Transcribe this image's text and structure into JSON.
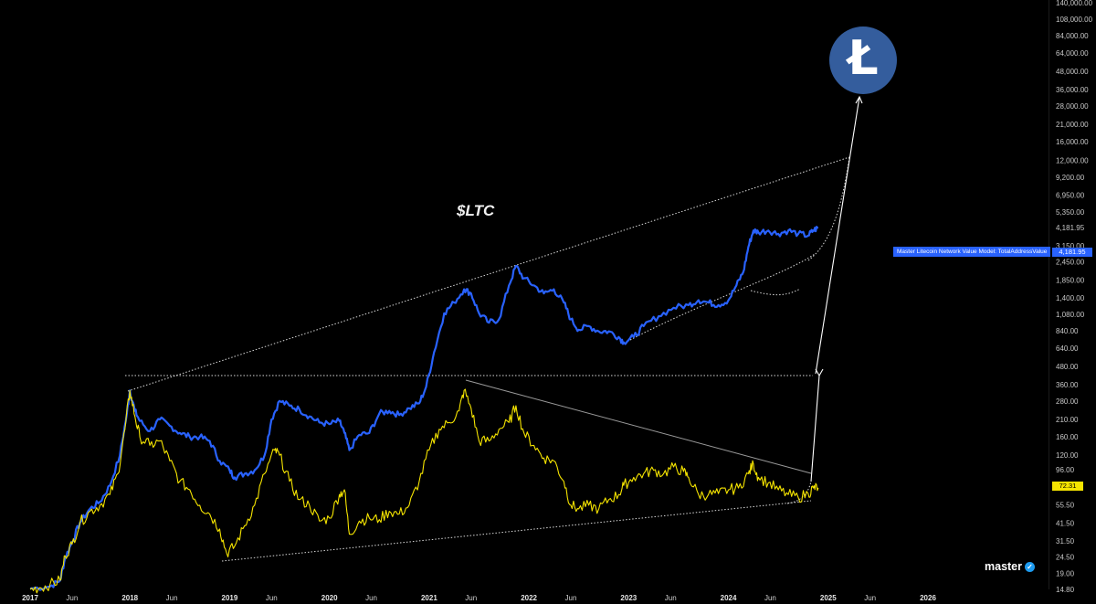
{
  "ticker_label": "$LTC",
  "logo_glyph": "Ł",
  "indicator_label": "Master Litecoin Network Value Model: TotalAddressValue",
  "price_tag_blue": "4,181.95",
  "price_tag_yellow": "72.31",
  "brand_name": "master",
  "colors": {
    "background": "#000000",
    "network_value": "#2962ff",
    "price": "#f5e400",
    "logo_bg": "#345d9d"
  },
  "chart_data": {
    "type": "line",
    "y_scale": "log",
    "ylim": [
      14.8,
      140000
    ],
    "y_ticks": [
      "140,000.00",
      "108,000.00",
      "84,000.00",
      "64,000.00",
      "48,000.00",
      "36,000.00",
      "28,000.00",
      "21,000.00",
      "16,000.00",
      "12,000.00",
      "9,200.00",
      "6,950.00",
      "5,350.00",
      "4,181.95",
      "3,150.00",
      "2,450.00",
      "1,850.00",
      "1,400.00",
      "1,080.00",
      "840.00",
      "640.00",
      "480.00",
      "360.00",
      "280.00",
      "210.00",
      "160.00",
      "120.00",
      "96.00",
      "72.31",
      "55.50",
      "41.50",
      "31.50",
      "24.50",
      "19.00",
      "14.80"
    ],
    "x_ticks": [
      {
        "label": "2017",
        "t": 2017.0,
        "year": true
      },
      {
        "label": "Jun",
        "t": 2017.42,
        "year": false
      },
      {
        "label": "2018",
        "t": 2018.0,
        "year": true
      },
      {
        "label": "Jun",
        "t": 2018.42,
        "year": false
      },
      {
        "label": "2019",
        "t": 2019.0,
        "year": true
      },
      {
        "label": "Jun",
        "t": 2019.42,
        "year": false
      },
      {
        "label": "2020",
        "t": 2020.0,
        "year": true
      },
      {
        "label": "Jun",
        "t": 2020.42,
        "year": false
      },
      {
        "label": "2021",
        "t": 2021.0,
        "year": true
      },
      {
        "label": "Jun",
        "t": 2021.42,
        "year": false
      },
      {
        "label": "2022",
        "t": 2022.0,
        "year": true
      },
      {
        "label": "Jun",
        "t": 2022.42,
        "year": false
      },
      {
        "label": "2023",
        "t": 2023.0,
        "year": true
      },
      {
        "label": "Jun",
        "t": 2023.42,
        "year": false
      },
      {
        "label": "2024",
        "t": 2024.0,
        "year": true
      },
      {
        "label": "Jun",
        "t": 2024.42,
        "year": false
      },
      {
        "label": "2025",
        "t": 2025.0,
        "year": true
      },
      {
        "label": "Jun",
        "t": 2025.42,
        "year": false
      },
      {
        "label": "2026",
        "t": 2026.0,
        "year": true
      }
    ],
    "series": [
      {
        "values": [
          [
            2017.0,
            15
          ],
          [
            2017.2,
            15.5
          ],
          [
            2017.3,
            17
          ],
          [
            2017.35,
            24
          ],
          [
            2017.42,
            31
          ],
          [
            2017.5,
            42
          ],
          [
            2017.6,
            52
          ],
          [
            2017.7,
            58
          ],
          [
            2017.8,
            75
          ],
          [
            2017.9,
            120
          ],
          [
            2017.97,
            230
          ],
          [
            2018.0,
            330
          ],
          [
            2018.05,
            240
          ],
          [
            2018.1,
            205
          ],
          [
            2018.2,
            175
          ],
          [
            2018.3,
            210
          ],
          [
            2018.4,
            190
          ],
          [
            2018.5,
            170
          ],
          [
            2018.6,
            160
          ],
          [
            2018.7,
            160
          ],
          [
            2018.8,
            150
          ],
          [
            2018.9,
            110
          ],
          [
            2019.0,
            95
          ],
          [
            2019.05,
            85
          ],
          [
            2019.15,
            90
          ],
          [
            2019.25,
            95
          ],
          [
            2019.35,
            120
          ],
          [
            2019.42,
            210
          ],
          [
            2019.5,
            280
          ],
          [
            2019.6,
            260
          ],
          [
            2019.7,
            245
          ],
          [
            2019.8,
            220
          ],
          [
            2019.9,
            200
          ],
          [
            2020.0,
            195
          ],
          [
            2020.1,
            205
          ],
          [
            2020.15,
            170
          ],
          [
            2020.2,
            130
          ],
          [
            2020.3,
            165
          ],
          [
            2020.4,
            170
          ],
          [
            2020.5,
            230
          ],
          [
            2020.6,
            240
          ],
          [
            2020.7,
            225
          ],
          [
            2020.8,
            250
          ],
          [
            2020.9,
            270
          ],
          [
            2020.97,
            350
          ],
          [
            2021.05,
            600
          ],
          [
            2021.15,
            1100
          ],
          [
            2021.25,
            1300
          ],
          [
            2021.35,
            1600
          ],
          [
            2021.42,
            1500
          ],
          [
            2021.5,
            1100
          ],
          [
            2021.6,
            950
          ],
          [
            2021.7,
            1000
          ],
          [
            2021.8,
            1700
          ],
          [
            2021.87,
            2300
          ],
          [
            2021.95,
            1900
          ],
          [
            2022.05,
            1700
          ],
          [
            2022.15,
            1500
          ],
          [
            2022.25,
            1600
          ],
          [
            2022.35,
            1300
          ],
          [
            2022.42,
            1000
          ],
          [
            2022.5,
            850
          ],
          [
            2022.6,
            900
          ],
          [
            2022.7,
            830
          ],
          [
            2022.8,
            830
          ],
          [
            2022.9,
            760
          ],
          [
            2022.95,
            700
          ],
          [
            2023.05,
            760
          ],
          [
            2023.15,
            900
          ],
          [
            2023.3,
            1050
          ],
          [
            2023.45,
            1200
          ],
          [
            2023.6,
            1250
          ],
          [
            2023.7,
            1350
          ],
          [
            2023.8,
            1300
          ],
          [
            2023.9,
            1250
          ],
          [
            2024.0,
            1350
          ],
          [
            2024.08,
            1700
          ],
          [
            2024.15,
            2100
          ],
          [
            2024.2,
            3100
          ],
          [
            2024.25,
            4000
          ],
          [
            2024.3,
            3900
          ],
          [
            2024.4,
            4000
          ],
          [
            2024.5,
            3800
          ],
          [
            2024.6,
            4000
          ],
          [
            2024.7,
            3800
          ],
          [
            2024.8,
            3700
          ],
          [
            2024.85,
            4000
          ],
          [
            2024.9,
            4180
          ]
        ]
      },
      {
        "values": [
          [
            2017.0,
            14.8
          ],
          [
            2017.1,
            15.2
          ],
          [
            2017.2,
            16
          ],
          [
            2017.3,
            17
          ],
          [
            2017.35,
            25
          ],
          [
            2017.42,
            30
          ],
          [
            2017.5,
            42
          ],
          [
            2017.6,
            50
          ],
          [
            2017.7,
            55
          ],
          [
            2017.8,
            65
          ],
          [
            2017.88,
            90
          ],
          [
            2017.95,
            180
          ],
          [
            2018.0,
            330
          ],
          [
            2018.05,
            220
          ],
          [
            2018.1,
            160
          ],
          [
            2018.2,
            140
          ],
          [
            2018.3,
            150
          ],
          [
            2018.4,
            110
          ],
          [
            2018.5,
            80
          ],
          [
            2018.6,
            70
          ],
          [
            2018.7,
            55
          ],
          [
            2018.8,
            48
          ],
          [
            2018.9,
            38
          ],
          [
            2018.97,
            26
          ],
          [
            2019.05,
            29
          ],
          [
            2019.15,
            40
          ],
          [
            2019.25,
            55
          ],
          [
            2019.35,
            90
          ],
          [
            2019.45,
            130
          ],
          [
            2019.5,
            120
          ],
          [
            2019.6,
            80
          ],
          [
            2019.7,
            60
          ],
          [
            2019.8,
            55
          ],
          [
            2019.9,
            43
          ],
          [
            2020.0,
            45
          ],
          [
            2020.1,
            65
          ],
          [
            2020.15,
            70
          ],
          [
            2020.2,
            35
          ],
          [
            2020.3,
            43
          ],
          [
            2020.4,
            45
          ],
          [
            2020.5,
            44
          ],
          [
            2020.6,
            50
          ],
          [
            2020.7,
            48
          ],
          [
            2020.8,
            55
          ],
          [
            2020.9,
            80
          ],
          [
            2021.0,
            130
          ],
          [
            2021.1,
            180
          ],
          [
            2021.2,
            200
          ],
          [
            2021.3,
            240
          ],
          [
            2021.35,
            330
          ],
          [
            2021.42,
            250
          ],
          [
            2021.5,
            150
          ],
          [
            2021.6,
            150
          ],
          [
            2021.7,
            180
          ],
          [
            2021.8,
            200
          ],
          [
            2021.87,
            260
          ],
          [
            2021.95,
            170
          ],
          [
            2022.05,
            140
          ],
          [
            2022.15,
            115
          ],
          [
            2022.25,
            110
          ],
          [
            2022.35,
            80
          ],
          [
            2022.42,
            55
          ],
          [
            2022.5,
            52
          ],
          [
            2022.6,
            55
          ],
          [
            2022.7,
            52
          ],
          [
            2022.8,
            60
          ],
          [
            2022.9,
            65
          ],
          [
            2022.95,
            75
          ],
          [
            2023.05,
            85
          ],
          [
            2023.15,
            90
          ],
          [
            2023.25,
            95
          ],
          [
            2023.35,
            90
          ],
          [
            2023.45,
            100
          ],
          [
            2023.55,
            93
          ],
          [
            2023.6,
            85
          ],
          [
            2023.7,
            65
          ],
          [
            2023.8,
            65
          ],
          [
            2023.9,
            66
          ],
          [
            2024.0,
            70
          ],
          [
            2024.1,
            72
          ],
          [
            2024.2,
            90
          ],
          [
            2024.25,
            105
          ],
          [
            2024.3,
            85
          ],
          [
            2024.4,
            78
          ],
          [
            2024.5,
            70
          ],
          [
            2024.6,
            65
          ],
          [
            2024.7,
            62
          ],
          [
            2024.8,
            66
          ],
          [
            2024.85,
            72
          ],
          [
            2024.9,
            72.31
          ]
        ]
      }
    ]
  }
}
